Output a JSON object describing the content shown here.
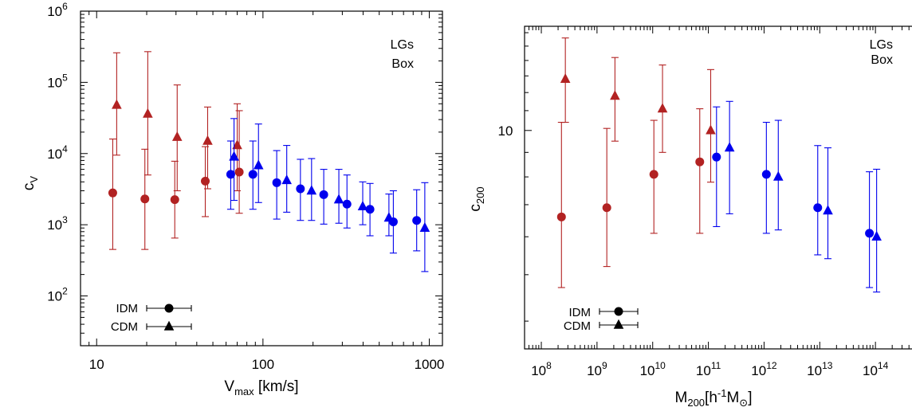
{
  "colors": {
    "LGs": "#b22222",
    "Box": "#0000ee",
    "key": "#000000"
  },
  "chart_data": [
    {
      "type": "scatter",
      "title": "",
      "xlabel": "V",
      "xlabel_sub": "max",
      "xlabel_suffix": " [km/s]",
      "ylabel": "c",
      "ylabel_sub": "V",
      "x_scale": "log",
      "y_scale": "log",
      "xlim": [
        8,
        1200
      ],
      "ylim": [
        20,
        1000000
      ],
      "grid": false,
      "x_ticks": [
        {
          "value": 10,
          "label": "10"
        },
        {
          "value": 100,
          "label": "100"
        },
        {
          "value": 1000,
          "label": "1000"
        }
      ],
      "y_ticks": [
        {
          "value": 100,
          "base": "10",
          "exp": "2"
        },
        {
          "value": 1000,
          "base": "10",
          "exp": "3"
        },
        {
          "value": 10000,
          "base": "10",
          "exp": "4"
        },
        {
          "value": 100000,
          "base": "10",
          "exp": "5"
        },
        {
          "value": 1000000,
          "base": "10",
          "exp": "6"
        }
      ],
      "legend": [
        {
          "label": "LGs",
          "color_key": "LGs"
        },
        {
          "label": "Box",
          "color_key": "Box"
        }
      ],
      "marker_key": [
        {
          "label": "IDM",
          "marker": "circle"
        },
        {
          "label": "CDM",
          "marker": "triangle"
        }
      ],
      "series": [
        {
          "group": "LGs",
          "model": "IDM",
          "marker": "circle",
          "x": [
            12.5,
            19.5,
            29.5,
            45,
            72
          ],
          "y": [
            2800,
            2300,
            2250,
            4100,
            5500
          ],
          "ylow": [
            450,
            450,
            650,
            1300,
            1450
          ],
          "yhigh": [
            16000,
            11500,
            7800,
            12500,
            40000
          ]
        },
        {
          "group": "LGs",
          "model": "CDM",
          "marker": "triangle",
          "x": [
            13.2,
            20.3,
            30.5,
            46.5,
            70
          ],
          "y": [
            48000,
            36000,
            17000,
            15000,
            13000
          ],
          "ylow": [
            9500,
            5000,
            3000,
            3200,
            3000
          ],
          "yhigh": [
            260000,
            270000,
            92000,
            45000,
            50000
          ]
        },
        {
          "group": "Box",
          "model": "IDM",
          "marker": "circle",
          "x": [
            64,
            87,
            121,
            168,
            232,
            320,
            440,
            608,
            840
          ],
          "y": [
            5100,
            5100,
            3900,
            3200,
            2650,
            1950,
            1650,
            1100,
            1150
          ],
          "ylow": [
            1650,
            1650,
            1200,
            1150,
            1020,
            900,
            700,
            400,
            430
          ],
          "yhigh": [
            15000,
            15000,
            11000,
            8300,
            6000,
            5000,
            3800,
            3000,
            3100
          ]
        },
        {
          "group": "Box",
          "model": "CDM",
          "marker": "triangle",
          "x": [
            67,
            94,
            139,
            196,
            286,
            398,
            572,
            940
          ],
          "y": [
            9000,
            6800,
            4200,
            3000,
            2250,
            1800,
            1250,
            900
          ],
          "ylow": [
            2200,
            2050,
            1500,
            1150,
            1050,
            1000,
            700,
            220
          ],
          "yhigh": [
            31000,
            26000,
            13000,
            8500,
            6000,
            4000,
            2700,
            3900
          ]
        }
      ]
    },
    {
      "type": "scatter",
      "title": "",
      "xlabel": "M",
      "xlabel_sub": "200",
      "xlabel_unit": "[h",
      "xlabel_unit_sup": "-1",
      "xlabel_unit_m": "M",
      "xlabel_unit_sub": "⊙",
      "xlabel_unit_close": "]",
      "ylabel": "c",
      "ylabel_sub": "200",
      "x_scale": "log",
      "y_scale": "log",
      "xlim": [
        50000000,
        1000000000000000
      ],
      "ylim": [
        3.5,
        16.5
      ],
      "grid": false,
      "x_ticks": [
        {
          "value": 100000000,
          "base": "10",
          "exp": "8"
        },
        {
          "value": 1000000000,
          "base": "10",
          "exp": "9"
        },
        {
          "value": 10000000000,
          "base": "10",
          "exp": "10"
        },
        {
          "value": 100000000000,
          "base": "10",
          "exp": "11"
        },
        {
          "value": 1000000000000,
          "base": "10",
          "exp": "12"
        },
        {
          "value": 10000000000000,
          "base": "10",
          "exp": "13"
        },
        {
          "value": 100000000000000,
          "base": "10",
          "exp": "14"
        }
      ],
      "y_ticks": [
        {
          "value": 10,
          "label": "10"
        }
      ],
      "legend": [
        {
          "label": "LGs",
          "color_key": "LGs"
        },
        {
          "label": "Box",
          "color_key": "Box"
        }
      ],
      "marker_key": [
        {
          "label": "IDM",
          "marker": "circle"
        },
        {
          "label": "CDM",
          "marker": "triangle"
        }
      ],
      "series": [
        {
          "group": "LGs",
          "model": "IDM",
          "marker": "circle",
          "x": [
            230000000,
            1500000000,
            10500000000,
            70000000000
          ],
          "y": [
            6.6,
            6.9,
            8.1,
            8.6
          ],
          "ylow": [
            4.7,
            5.2,
            6.1,
            6.1
          ],
          "yhigh": [
            10.4,
            10.1,
            10.5,
            11.1
          ]
        },
        {
          "group": "LGs",
          "model": "CDM",
          "marker": "triangle",
          "x": [
            270000000,
            2100000000,
            15000000000,
            110000000000
          ],
          "y": [
            12.8,
            11.8,
            11.1,
            10.0
          ],
          "ylow": [
            10.4,
            9.5,
            9.0,
            7.8
          ],
          "yhigh": [
            15.6,
            14.2,
            13.7,
            13.4
          ]
        },
        {
          "group": "Box",
          "model": "IDM",
          "marker": "circle",
          "x": [
            140000000000,
            1100000000000,
            9200000000000,
            78000000000000
          ],
          "y": [
            8.8,
            8.1,
            6.9,
            6.1
          ],
          "ylow": [
            6.3,
            6.1,
            5.5,
            4.7
          ],
          "yhigh": [
            11.2,
            10.4,
            9.3,
            8.2
          ]
        },
        {
          "group": "Box",
          "model": "CDM",
          "marker": "triangle",
          "x": [
            240000000000,
            1800000000000,
            14000000000000,
            105000000000000
          ],
          "y": [
            9.2,
            8.0,
            6.8,
            6.0
          ],
          "ylow": [
            6.7,
            6.2,
            5.4,
            4.6
          ],
          "yhigh": [
            11.5,
            10.5,
            9.2,
            8.3
          ]
        }
      ]
    }
  ]
}
